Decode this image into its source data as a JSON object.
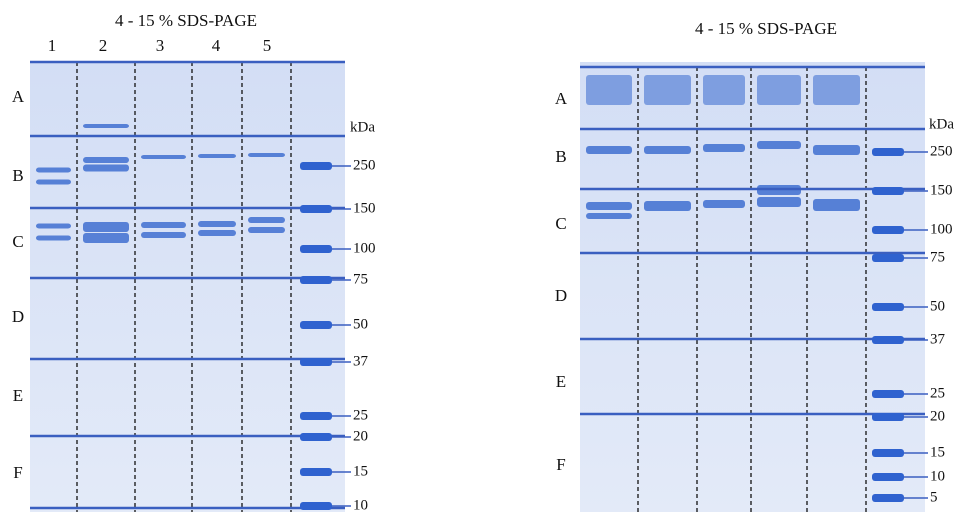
{
  "panels": [
    {
      "title": "4 - 15 % SDS-PAGE",
      "lanes": [
        "1",
        "2",
        "3",
        "4",
        "5"
      ],
      "regions": [
        "A",
        "B",
        "C",
        "D",
        "E",
        "F"
      ],
      "unit": "kDa",
      "markers": [
        250,
        150,
        100,
        75,
        50,
        37,
        25,
        20,
        15,
        10
      ]
    },
    {
      "title": "4 - 15 % SDS-PAGE",
      "regions": [
        "A",
        "B",
        "C",
        "D",
        "E",
        "F"
      ],
      "unit": "kDa",
      "markers": [
        250,
        150,
        100,
        75,
        50,
        37,
        25,
        20,
        15,
        10,
        5
      ]
    }
  ]
}
